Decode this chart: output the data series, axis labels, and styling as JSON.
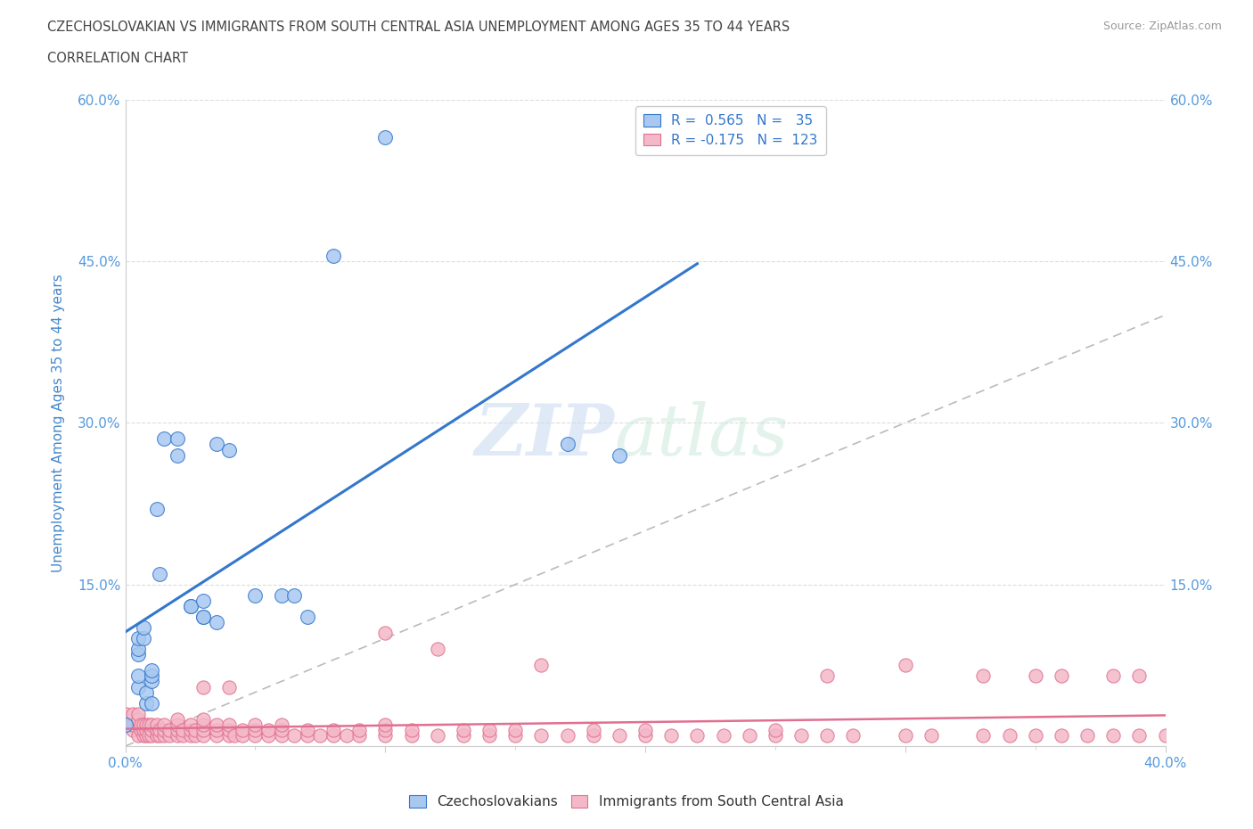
{
  "title_line1": "CZECHOSLOVAKIAN VS IMMIGRANTS FROM SOUTH CENTRAL ASIA UNEMPLOYMENT AMONG AGES 35 TO 44 YEARS",
  "title_line2": "CORRELATION CHART",
  "source": "Source: ZipAtlas.com",
  "ylabel": "Unemployment Among Ages 35 to 44 years",
  "xmin": 0.0,
  "xmax": 0.4,
  "ymin": 0.0,
  "ymax": 0.6,
  "color_czech": "#a8c8f0",
  "color_asia": "#f4b8c8",
  "line_color_czech": "#3377cc",
  "line_color_asia": "#e07090",
  "diag_line_color": "#bbbbbb",
  "background_color": "#ffffff",
  "grid_color": "#dddddd",
  "title_color": "#444444",
  "axis_label_color": "#4488cc",
  "tick_label_color": "#5599dd",
  "czech_points": [
    [
      0.0,
      0.02
    ],
    [
      0.005,
      0.055
    ],
    [
      0.005,
      0.065
    ],
    [
      0.005,
      0.085
    ],
    [
      0.005,
      0.09
    ],
    [
      0.005,
      0.1
    ],
    [
      0.007,
      0.1
    ],
    [
      0.007,
      0.11
    ],
    [
      0.008,
      0.04
    ],
    [
      0.008,
      0.05
    ],
    [
      0.01,
      0.04
    ],
    [
      0.01,
      0.06
    ],
    [
      0.01,
      0.065
    ],
    [
      0.01,
      0.07
    ],
    [
      0.012,
      0.22
    ],
    [
      0.013,
      0.16
    ],
    [
      0.015,
      0.285
    ],
    [
      0.02,
      0.27
    ],
    [
      0.02,
      0.285
    ],
    [
      0.025,
      0.13
    ],
    [
      0.025,
      0.13
    ],
    [
      0.03,
      0.12
    ],
    [
      0.03,
      0.12
    ],
    [
      0.03,
      0.135
    ],
    [
      0.035,
      0.115
    ],
    [
      0.035,
      0.28
    ],
    [
      0.04,
      0.275
    ],
    [
      0.05,
      0.14
    ],
    [
      0.06,
      0.14
    ],
    [
      0.065,
      0.14
    ],
    [
      0.07,
      0.12
    ],
    [
      0.08,
      0.455
    ],
    [
      0.1,
      0.565
    ],
    [
      0.17,
      0.28
    ],
    [
      0.19,
      0.27
    ]
  ],
  "asia_points": [
    [
      0.0,
      0.02
    ],
    [
      0.0,
      0.03
    ],
    [
      0.003,
      0.015
    ],
    [
      0.003,
      0.02
    ],
    [
      0.003,
      0.03
    ],
    [
      0.005,
      0.01
    ],
    [
      0.005,
      0.02
    ],
    [
      0.005,
      0.025
    ],
    [
      0.005,
      0.03
    ],
    [
      0.006,
      0.015
    ],
    [
      0.006,
      0.02
    ],
    [
      0.007,
      0.01
    ],
    [
      0.007,
      0.015
    ],
    [
      0.007,
      0.02
    ],
    [
      0.008,
      0.01
    ],
    [
      0.008,
      0.015
    ],
    [
      0.008,
      0.02
    ],
    [
      0.009,
      0.01
    ],
    [
      0.009,
      0.02
    ],
    [
      0.01,
      0.01
    ],
    [
      0.01,
      0.015
    ],
    [
      0.01,
      0.02
    ],
    [
      0.012,
      0.01
    ],
    [
      0.012,
      0.015
    ],
    [
      0.012,
      0.02
    ],
    [
      0.013,
      0.01
    ],
    [
      0.013,
      0.015
    ],
    [
      0.015,
      0.01
    ],
    [
      0.015,
      0.015
    ],
    [
      0.015,
      0.02
    ],
    [
      0.017,
      0.01
    ],
    [
      0.017,
      0.015
    ],
    [
      0.02,
      0.01
    ],
    [
      0.02,
      0.015
    ],
    [
      0.02,
      0.02
    ],
    [
      0.02,
      0.025
    ],
    [
      0.022,
      0.01
    ],
    [
      0.022,
      0.015
    ],
    [
      0.025,
      0.01
    ],
    [
      0.025,
      0.015
    ],
    [
      0.025,
      0.02
    ],
    [
      0.027,
      0.01
    ],
    [
      0.027,
      0.015
    ],
    [
      0.03,
      0.01
    ],
    [
      0.03,
      0.015
    ],
    [
      0.03,
      0.02
    ],
    [
      0.03,
      0.025
    ],
    [
      0.035,
      0.01
    ],
    [
      0.035,
      0.015
    ],
    [
      0.035,
      0.02
    ],
    [
      0.04,
      0.01
    ],
    [
      0.04,
      0.015
    ],
    [
      0.04,
      0.02
    ],
    [
      0.042,
      0.01
    ],
    [
      0.045,
      0.01
    ],
    [
      0.045,
      0.015
    ],
    [
      0.05,
      0.01
    ],
    [
      0.05,
      0.015
    ],
    [
      0.05,
      0.02
    ],
    [
      0.055,
      0.01
    ],
    [
      0.055,
      0.015
    ],
    [
      0.06,
      0.01
    ],
    [
      0.06,
      0.015
    ],
    [
      0.06,
      0.02
    ],
    [
      0.065,
      0.01
    ],
    [
      0.07,
      0.01
    ],
    [
      0.07,
      0.015
    ],
    [
      0.075,
      0.01
    ],
    [
      0.08,
      0.01
    ],
    [
      0.08,
      0.015
    ],
    [
      0.085,
      0.01
    ],
    [
      0.09,
      0.01
    ],
    [
      0.09,
      0.015
    ],
    [
      0.1,
      0.01
    ],
    [
      0.1,
      0.015
    ],
    [
      0.1,
      0.02
    ],
    [
      0.11,
      0.01
    ],
    [
      0.11,
      0.015
    ],
    [
      0.12,
      0.01
    ],
    [
      0.13,
      0.01
    ],
    [
      0.13,
      0.015
    ],
    [
      0.14,
      0.01
    ],
    [
      0.14,
      0.015
    ],
    [
      0.15,
      0.01
    ],
    [
      0.15,
      0.015
    ],
    [
      0.16,
      0.01
    ],
    [
      0.17,
      0.01
    ],
    [
      0.18,
      0.01
    ],
    [
      0.18,
      0.015
    ],
    [
      0.19,
      0.01
    ],
    [
      0.2,
      0.01
    ],
    [
      0.2,
      0.015
    ],
    [
      0.21,
      0.01
    ],
    [
      0.22,
      0.01
    ],
    [
      0.23,
      0.01
    ],
    [
      0.24,
      0.01
    ],
    [
      0.25,
      0.01
    ],
    [
      0.25,
      0.015
    ],
    [
      0.26,
      0.01
    ],
    [
      0.27,
      0.01
    ],
    [
      0.28,
      0.01
    ],
    [
      0.3,
      0.01
    ],
    [
      0.31,
      0.01
    ],
    [
      0.33,
      0.01
    ],
    [
      0.34,
      0.01
    ],
    [
      0.35,
      0.01
    ],
    [
      0.36,
      0.01
    ],
    [
      0.37,
      0.01
    ],
    [
      0.38,
      0.01
    ],
    [
      0.39,
      0.01
    ],
    [
      0.4,
      0.01
    ],
    [
      0.1,
      0.105
    ],
    [
      0.27,
      0.065
    ],
    [
      0.33,
      0.065
    ],
    [
      0.38,
      0.065
    ],
    [
      0.39,
      0.065
    ],
    [
      0.03,
      0.055
    ],
    [
      0.04,
      0.055
    ],
    [
      0.16,
      0.075
    ],
    [
      0.12,
      0.09
    ],
    [
      0.3,
      0.075
    ],
    [
      0.35,
      0.065
    ],
    [
      0.36,
      0.065
    ]
  ]
}
